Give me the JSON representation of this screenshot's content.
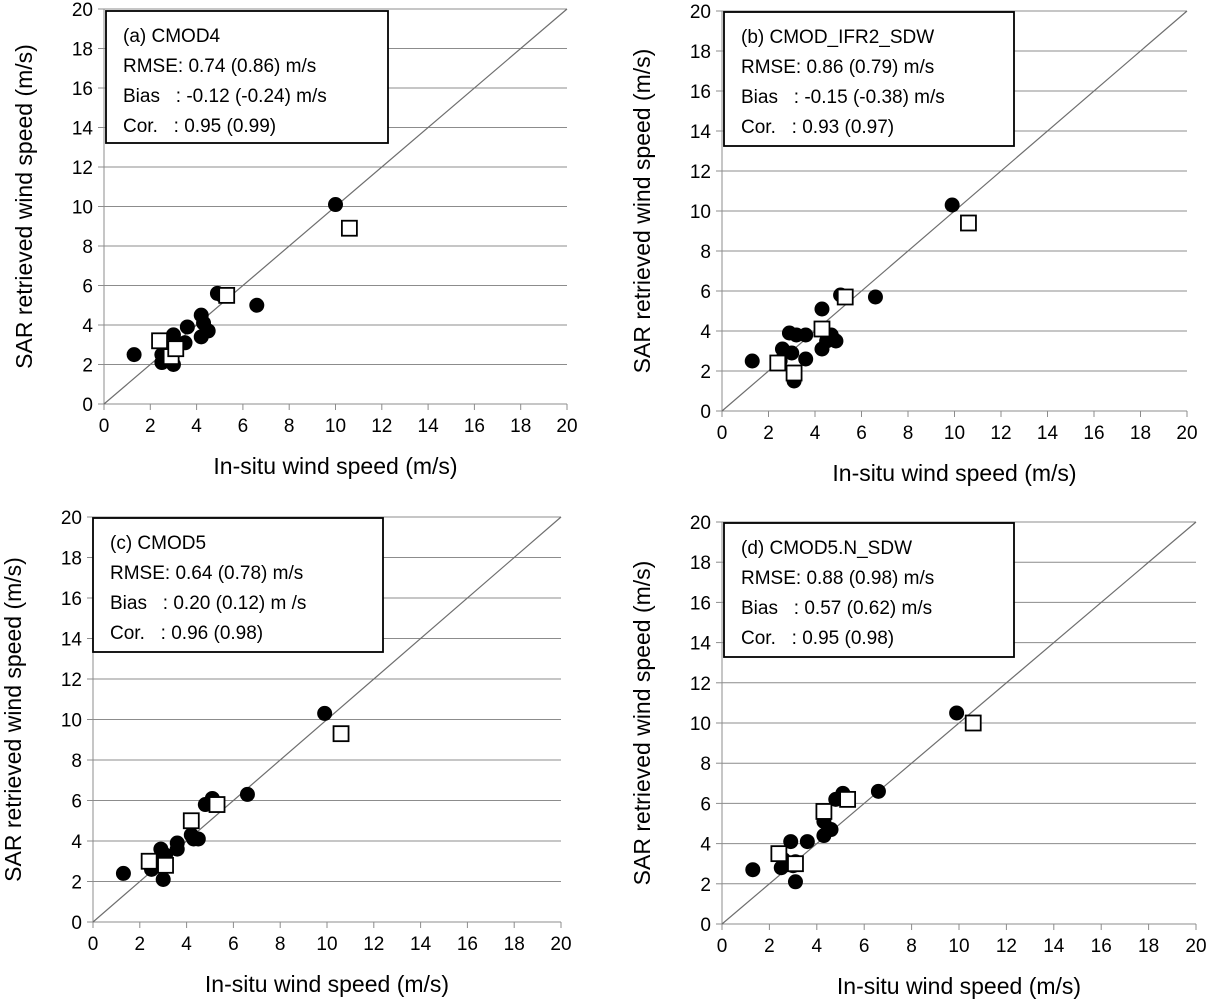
{
  "chart_data": [
    {
      "type": "scatter",
      "panel": "(a) CMOD4",
      "title": "(a) CMOD4",
      "stats": {
        "rmse": "RMSE: 0.74 (0.86) m/s",
        "bias": "Bias   : -0.12 (-0.24) m/s",
        "cor": "Cor.   : 0.95 (0.99)"
      },
      "xlabel": "In-situ wind speed (m/s)",
      "ylabel": "SAR retrieved wind speed (m/s)",
      "xlim": [
        0,
        20
      ],
      "ylim": [
        0,
        20
      ],
      "xticks": [
        "0",
        "2",
        "4",
        "6",
        "8",
        "10",
        "12",
        "14",
        "16",
        "18",
        "20"
      ],
      "yticks": [
        "0",
        "2",
        "4",
        "6",
        "8",
        "10",
        "12",
        "14",
        "16",
        "18",
        "20"
      ],
      "grid": "horizontal",
      "reference_line": "1:1",
      "series": [
        {
          "name": "filled circles",
          "marker": "circle",
          "x": [
            1.3,
            2.5,
            2.5,
            2.9,
            3.0,
            3.0,
            3.0,
            3.5,
            3.6,
            4.2,
            4.2,
            4.3,
            4.5,
            4.9,
            5.1,
            6.6,
            10.0
          ],
          "y": [
            2.5,
            2.1,
            2.5,
            2.5,
            3.5,
            2.8,
            2.0,
            3.1,
            3.9,
            4.5,
            3.4,
            4.1,
            3.7,
            5.6,
            5.5,
            5.0,
            10.1
          ]
        },
        {
          "name": "open squares",
          "marker": "square",
          "x": [
            2.4,
            2.9,
            3.1,
            5.3,
            10.6
          ],
          "y": [
            3.2,
            2.4,
            2.8,
            5.5,
            8.9
          ]
        }
      ]
    },
    {
      "type": "scatter",
      "panel": "(b) CMOD_IFR2_SDW",
      "title": "(b) CMOD_IFR2_SDW",
      "stats": {
        "rmse": "RMSE: 0.86 (0.79) m/s",
        "bias": "Bias   : -0.15 (-0.38) m/s",
        "cor": "Cor.   : 0.93 (0.97)"
      },
      "xlabel": "In-situ wind speed (m/s)",
      "ylabel": "SAR retrieved wind speed (m/s)",
      "xlim": [
        0,
        20
      ],
      "ylim": [
        0,
        20
      ],
      "xticks": [
        "0",
        "2",
        "4",
        "6",
        "8",
        "10",
        "12",
        "14",
        "16",
        "18",
        "20"
      ],
      "yticks": [
        "0",
        "2",
        "4",
        "6",
        "8",
        "10",
        "12",
        "14",
        "16",
        "18",
        "20"
      ],
      "grid": "horizontal",
      "reference_line": "1:1",
      "series": [
        {
          "name": "filled circles",
          "marker": "circle",
          "x": [
            1.3,
            2.5,
            2.6,
            2.9,
            3.0,
            3.1,
            3.2,
            3.6,
            3.6,
            4.3,
            4.3,
            4.5,
            4.7,
            4.9,
            5.1,
            6.6,
            9.9
          ],
          "y": [
            2.5,
            2.5,
            3.1,
            3.9,
            2.9,
            1.5,
            3.8,
            2.6,
            3.8,
            5.1,
            3.1,
            3.5,
            3.8,
            3.5,
            5.8,
            5.7,
            10.3
          ]
        },
        {
          "name": "open squares",
          "marker": "square",
          "x": [
            2.4,
            3.1,
            4.3,
            5.3,
            10.6
          ],
          "y": [
            2.4,
            1.9,
            4.1,
            5.7,
            9.4
          ]
        }
      ]
    },
    {
      "type": "scatter",
      "panel": "(c) CMOD5",
      "title": "(c) CMOD5",
      "stats": {
        "rmse": "RMSE: 0.64 (0.78) m/s",
        "bias": "Bias   : 0.20 (0.12) m /s",
        "cor": "Cor.   : 0.96 (0.98)"
      },
      "xlabel": "In-situ wind speed (m/s)",
      "ylabel": "SAR retrieved wind speed (m/s)",
      "xlim": [
        0,
        20
      ],
      "ylim": [
        0,
        20
      ],
      "xticks": [
        "0",
        "2",
        "4",
        "6",
        "8",
        "10",
        "12",
        "14",
        "16",
        "18",
        "20"
      ],
      "yticks": [
        "0",
        "2",
        "4",
        "6",
        "8",
        "10",
        "12",
        "14",
        "16",
        "18",
        "20"
      ],
      "grid": "horizontal",
      "reference_line": "1:1",
      "series": [
        {
          "name": "filled circles",
          "marker": "circle",
          "x": [
            1.3,
            2.5,
            2.6,
            2.9,
            2.9,
            3.0,
            3.1,
            3.1,
            3.6,
            3.6,
            4.2,
            4.3,
            4.5,
            4.8,
            5.1,
            6.6,
            9.9
          ],
          "y": [
            2.4,
            2.6,
            3.0,
            3.6,
            2.8,
            2.1,
            3.3,
            2.9,
            3.6,
            3.9,
            4.3,
            4.1,
            4.1,
            5.8,
            6.1,
            6.3,
            10.3
          ]
        },
        {
          "name": "open squares",
          "marker": "square",
          "x": [
            2.4,
            3.1,
            4.2,
            5.3,
            10.6
          ],
          "y": [
            3.0,
            2.8,
            5.0,
            5.8,
            9.3
          ]
        }
      ]
    },
    {
      "type": "scatter",
      "panel": "(d) CMOD5.N_SDW",
      "title": "(d) CMOD5.N_SDW",
      "stats": {
        "rmse": "RMSE: 0.88 (0.98) m/s",
        "bias": "Bias   : 0.57 (0.62) m/s",
        "cor": "Cor.   : 0.95 (0.98)"
      },
      "xlabel": "In-situ wind speed (m/s)",
      "ylabel": "SAR retrieved wind speed (m/s)",
      "xlim": [
        0,
        20
      ],
      "ylim": [
        0,
        20
      ],
      "xticks": [
        "0",
        "2",
        "4",
        "6",
        "8",
        "10",
        "12",
        "14",
        "16",
        "18",
        "20"
      ],
      "yticks": [
        "0",
        "2",
        "4",
        "6",
        "8",
        "10",
        "12",
        "14",
        "16",
        "18",
        "20"
      ],
      "grid": "horizontal",
      "reference_line": "1:1",
      "series": [
        {
          "name": "filled circles",
          "marker": "circle",
          "x": [
            1.3,
            2.5,
            2.6,
            2.9,
            3.0,
            3.1,
            3.1,
            3.6,
            4.3,
            4.3,
            4.6,
            4.8,
            5.1,
            6.6,
            9.9
          ],
          "y": [
            2.7,
            2.8,
            3.2,
            4.1,
            2.9,
            2.1,
            3.1,
            4.1,
            4.4,
            5.1,
            4.7,
            6.2,
            6.5,
            6.6,
            10.5
          ]
        },
        {
          "name": "open squares",
          "marker": "square",
          "x": [
            2.4,
            3.1,
            4.3,
            5.3,
            10.6
          ],
          "y": [
            3.5,
            3.0,
            5.6,
            6.2,
            10.0
          ]
        }
      ]
    }
  ]
}
